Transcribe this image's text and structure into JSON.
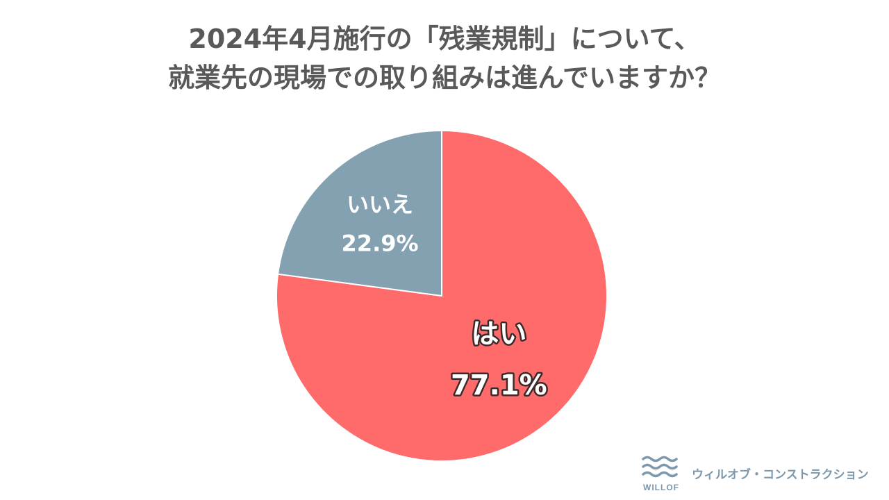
{
  "header": {
    "title_line1": "2024年4月施行の「残業規制」について、",
    "title_line2": "就業先の現場での取り組みは進んでいますか？"
  },
  "chart_data": {
    "type": "pie",
    "title": "2024年4月施行の「残業規制」について、就業先の現場での取り組みは進んでいますか？",
    "slices": [
      {
        "label": "はい",
        "value": 77.1,
        "value_label": "77.1%",
        "color": "#ff6b6b"
      },
      {
        "label": "いいえ",
        "value": 22.9,
        "value_label": "22.9%",
        "color": "#84a1b1"
      }
    ],
    "start": "12 o'clock",
    "direction": "clockwise",
    "legend": "none"
  },
  "branding": {
    "wordmark": "WILLOF",
    "company": "ウィルオブ・コンストラクション",
    "color": "#7c98ab"
  }
}
